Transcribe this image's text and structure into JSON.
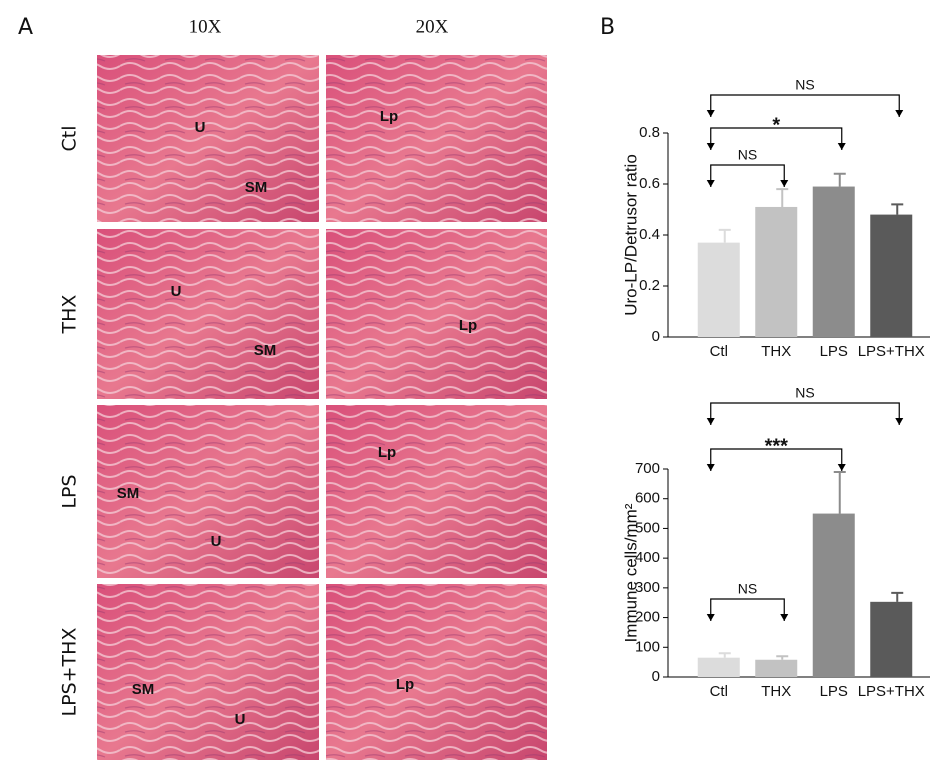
{
  "figure": {
    "panel_a": "A",
    "panel_b": "B",
    "columns": [
      "10X",
      "20X"
    ],
    "rows": [
      "Ctl",
      "THX",
      "LPS",
      "LPS+THX"
    ],
    "tissue_labels": [
      [
        "U",
        "SM",
        "Lp"
      ],
      [
        "U",
        "SM",
        "Lp"
      ],
      [
        "SM",
        "U",
        "Lp"
      ],
      [
        "SM",
        "U",
        "Lp"
      ]
    ]
  },
  "chart_data": [
    {
      "type": "bar",
      "y_label": "Uro-LP/Detrusor ratio",
      "categories": [
        "Ctl",
        "THX",
        "LPS",
        "LPS+THX"
      ],
      "values": [
        0.37,
        0.51,
        0.59,
        0.48
      ],
      "errors": [
        0.05,
        0.07,
        0.05,
        0.04
      ],
      "colors": [
        "#dcdcdc",
        "#c2c2c2",
        "#8c8c8c",
        "#5a5a5a"
      ],
      "ylim": [
        0,
        0.8
      ],
      "yticks": [
        0,
        0.2,
        0.4,
        0.6,
        0.8
      ],
      "annotations": [
        {
          "text": "NS",
          "from": 0,
          "to": 3
        },
        {
          "text": "*",
          "from": 0,
          "to": 2
        },
        {
          "text": "NS",
          "from": 0,
          "to": 1
        }
      ]
    },
    {
      "type": "bar",
      "y_label": "Immune cells/mm²",
      "categories": [
        "Ctl",
        "THX",
        "LPS",
        "LPS+THX"
      ],
      "values": [
        65,
        58,
        550,
        253
      ],
      "errors": [
        15,
        12,
        140,
        30
      ],
      "colors": [
        "#dcdcdc",
        "#c2c2c2",
        "#8c8c8c",
        "#5a5a5a"
      ],
      "ylim": [
        0,
        700
      ],
      "yticks": [
        0,
        100,
        200,
        300,
        400,
        500,
        600,
        700
      ],
      "annotations": [
        {
          "text": "NS",
          "from": 0,
          "to": 3
        },
        {
          "text": "***",
          "from": 0,
          "to": 2
        },
        {
          "text": "NS",
          "from": 0,
          "to": 1
        }
      ]
    }
  ]
}
